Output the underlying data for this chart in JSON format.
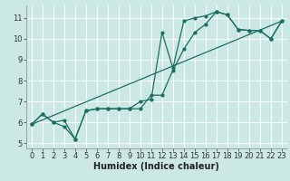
{
  "xlabel": "Humidex (Indice chaleur)",
  "bg_color": "#cce8e4",
  "grid_color": "#ffffff",
  "line_color": "#1a6e62",
  "xlim": [
    -0.5,
    23.5
  ],
  "ylim": [
    4.75,
    11.6
  ],
  "xticks": [
    0,
    1,
    2,
    3,
    4,
    5,
    6,
    7,
    8,
    9,
    10,
    11,
    12,
    13,
    14,
    15,
    16,
    17,
    18,
    19,
    20,
    21,
    22,
    23
  ],
  "yticks": [
    5,
    6,
    7,
    8,
    9,
    10,
    11
  ],
  "line1_x": [
    0,
    1,
    2,
    3,
    4,
    5,
    6,
    7,
    8,
    9,
    10,
    11,
    12,
    13,
    14,
    15,
    16,
    17,
    18,
    19,
    20,
    21,
    22,
    23
  ],
  "line1_y": [
    5.9,
    6.4,
    6.0,
    6.1,
    5.2,
    6.55,
    6.65,
    6.65,
    6.65,
    6.65,
    7.0,
    7.1,
    10.3,
    8.6,
    10.85,
    11.0,
    11.1,
    11.3,
    11.15,
    10.45,
    10.4,
    10.4,
    10.0,
    10.85
  ],
  "line2_x": [
    0,
    1,
    2,
    3,
    4,
    5,
    6,
    7,
    8,
    9,
    10,
    11,
    12,
    13,
    14,
    15,
    16,
    17,
    18,
    19,
    20,
    21,
    22,
    23
  ],
  "line2_y": [
    5.9,
    6.4,
    6.0,
    5.8,
    5.2,
    6.55,
    6.65,
    6.65,
    6.65,
    6.65,
    6.65,
    7.3,
    7.3,
    8.5,
    9.5,
    10.3,
    10.7,
    11.3,
    11.15,
    10.45,
    10.4,
    10.4,
    10.0,
    10.85
  ],
  "line3_x": [
    0,
    23
  ],
  "line3_y": [
    5.9,
    10.85
  ],
  "xlabel_fontsize": 7,
  "tick_fontsize": 6,
  "line_width": 0.9,
  "marker_size": 2.0
}
